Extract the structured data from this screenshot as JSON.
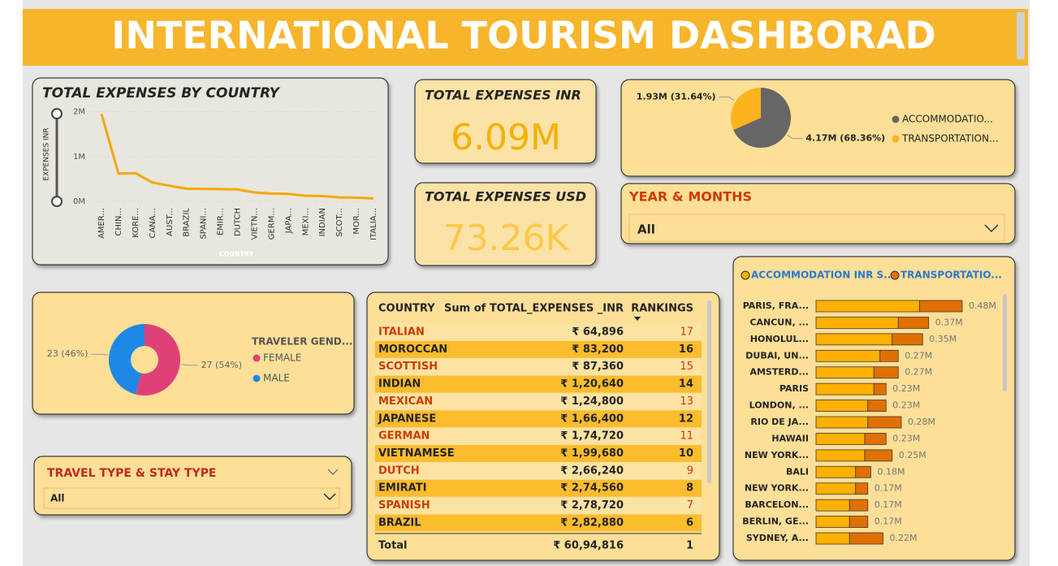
{
  "header": {
    "title": "INTERNATIONAL TOURISM DASHBORAD"
  },
  "kpis": [
    {
      "title": "TOTAL EXPENSES INR",
      "value": "6.09M"
    },
    {
      "title": "TOTAL EXPENSES USD",
      "value": "73.26K"
    }
  ],
  "slicers": [
    {
      "title": "YEAR & MONTHS",
      "selection": "All"
    },
    {
      "title": "TRAVEL TYPE & STAY TYPE",
      "selection": "All"
    }
  ],
  "table": {
    "columns": [
      "COUNTRY",
      "Sum of TOTAL_EXPENSES _INR",
      "RANKINGS"
    ],
    "rows": [
      [
        "ITALIAN",
        "₹ 64,896",
        17
      ],
      [
        "MOROCCAN",
        "₹ 83,200",
        16
      ],
      [
        "SCOTTISH",
        "₹ 87,360",
        15
      ],
      [
        "INDIAN",
        "₹ 1,20,640",
        14
      ],
      [
        "MEXICAN",
        "₹ 1,24,800",
        13
      ],
      [
        "JAPANESE",
        "₹ 1,66,400",
        12
      ],
      [
        "GERMAN",
        "₹ 1,74,720",
        11
      ],
      [
        "VIETNAMESE",
        "₹ 1,99,680",
        10
      ],
      [
        "DUTCH",
        "₹ 2,66,240",
        9
      ],
      [
        "EMIRATI",
        "₹ 2,74,560",
        8
      ],
      [
        "SPANISH",
        "₹ 2,78,720",
        7
      ],
      [
        "BRAZIL",
        "₹ 2,82,880",
        6
      ]
    ],
    "total": [
      "Total",
      "₹ 60,94,816",
      1
    ]
  },
  "chart_data": [
    {
      "type": "line",
      "title": "TOTAL EXPENSES BY COUNTRY",
      "x_label": "COUNTRY",
      "y_label": "EXPENSES INR",
      "categories": [
        "AMER...",
        "CHIN...",
        "KORE...",
        "CANA...",
        "AUST...",
        "BRAZIL",
        "SPANI...",
        "EMIR...",
        "DUTCH",
        "VIETN...",
        "GERM...",
        "JAPA...",
        "MEXI...",
        "INDIAN",
        "SCOT...",
        "MOR...",
        "ITALIA..."
      ],
      "values": [
        1950000,
        620000,
        630000,
        420000,
        350000,
        282880,
        278720,
        274560,
        266240,
        199680,
        174720,
        166400,
        124800,
        120640,
        87360,
        83200,
        64896
      ],
      "color": "#f5a800",
      "ylim": [
        0,
        2100000
      ],
      "yticks": [
        {
          "value": 0,
          "label": "0M"
        },
        {
          "value": 1000000,
          "label": "1M"
        },
        {
          "value": 2000000,
          "label": "2M"
        }
      ],
      "grid": true
    },
    {
      "type": "pie",
      "categories": [
        "ACCOMMODATIO...",
        "TRANSPORTATION..."
      ],
      "values": [
        4170000,
        1930000
      ],
      "value_labels": [
        "4.17M (68.36%)",
        "1.93M (31.64%)"
      ],
      "colors": [
        "#666666",
        "#fbb41e"
      ]
    },
    {
      "type": "donut",
      "title": "TRAVELER GEND...",
      "categories": [
        "FEMALE",
        "MALE"
      ],
      "values": [
        27,
        23
      ],
      "value_labels": [
        "27 (54%)",
        "23 (46%)"
      ],
      "colors": [
        "#e0407a",
        "#1e88e5"
      ]
    },
    {
      "type": "bar",
      "orientation": "horizontal",
      "stacked": true,
      "categories": [
        "PARIS, FRA...",
        "CANCUN, ...",
        "HONOLUL...",
        "DUBAI, UN...",
        "AMSTERD...",
        "PARIS",
        "LONDON, ...",
        "RIO DE JA...",
        "HAWAII",
        "NEW YORK...",
        "BALI",
        "NEW YORK...",
        "BARCELON...",
        "BERLIN, GE...",
        "SYDNEY, A..."
      ],
      "series": [
        {
          "name": "ACCOMMODATION INR S...",
          "color": "#ffb000",
          "values": [
            340000,
            270000,
            250000,
            210000,
            190000,
            190000,
            170000,
            170000,
            160000,
            160000,
            130000,
            130000,
            110000,
            110000,
            110000
          ]
        },
        {
          "name": "TRANSPORTATIO...",
          "color": "#e07000",
          "values": [
            140000,
            100000,
            100000,
            60000,
            80000,
            40000,
            60000,
            110000,
            70000,
            90000,
            50000,
            40000,
            60000,
            60000,
            110000
          ]
        }
      ],
      "totals": [
        480000,
        370000,
        350000,
        270000,
        270000,
        230000,
        230000,
        280000,
        230000,
        250000,
        180000,
        170000,
        170000,
        170000,
        220000
      ],
      "total_labels": [
        "0.48M",
        "0.37M",
        "0.35M",
        "0.27M",
        "0.27M",
        "0.23M",
        "0.23M",
        "0.28M",
        "0.23M",
        "0.25M",
        "0.18M",
        "0.17M",
        "0.17M",
        "0.17M",
        "0.22M"
      ]
    }
  ]
}
